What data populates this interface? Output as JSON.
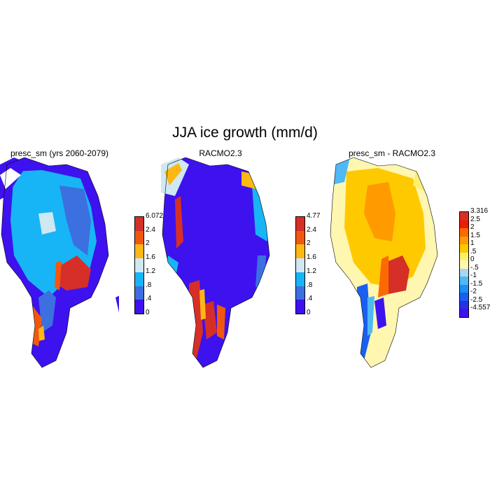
{
  "title": "JJA ice growth (mm/d)",
  "panels": [
    {
      "title": "presc_sm (yrs 2060-2079)",
      "colorbar": {
        "labels": [
          "6.072",
          "2.4",
          "2",
          "1.6",
          "1.2",
          ".8",
          ".4",
          "0"
        ],
        "colors": [
          "#d62f27",
          "#f0580f",
          "#fdb813",
          "#cfe8f2",
          "#17b5f5",
          "#3c6fe0",
          "#3d12ef"
        ]
      }
    },
    {
      "title": "RACMO2.3",
      "colorbar": {
        "labels": [
          "4.77",
          "2.4",
          "2",
          "1.6",
          "1.2",
          ".8",
          ".4",
          "0"
        ],
        "colors": [
          "#d62f27",
          "#f0580f",
          "#fdb813",
          "#cfe8f2",
          "#17b5f5",
          "#3c6fe0",
          "#3d12ef"
        ]
      }
    },
    {
      "title": "presc_sm - RACMO2.3",
      "colorbar": {
        "labels": [
          "3.316",
          "2.5",
          "2",
          "1.5",
          "1",
          ".5",
          "0",
          "-.5",
          "-1",
          "-1.5",
          "-2",
          "-2.5",
          "-4.557"
        ],
        "colors": [
          "#d62f27",
          "#ee1c00",
          "#fb6a00",
          "#ff9a00",
          "#ffc900",
          "#fdf06f",
          "#fff6b0",
          "#a9d7f0",
          "#4fb8f5",
          "#1a8ff4",
          "#1a5ff0",
          "#2a2fe6",
          "#3d12ef"
        ]
      }
    }
  ]
}
